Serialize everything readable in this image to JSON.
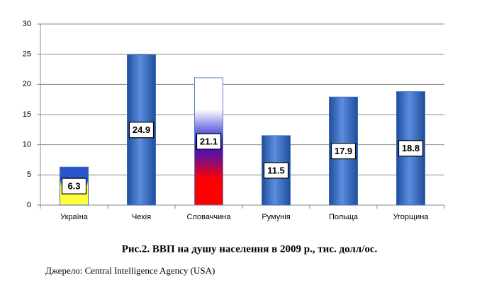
{
  "chart_data": {
    "type": "bar",
    "caption": "Рис.2. ВВП на душу населення в 2009 р., тис. долл/ос.",
    "source": "Джерело: Central Intelligence Agency (USA)",
    "categories": [
      "Україна",
      "Чехія",
      "Словаччина",
      "Румунія",
      "Польща",
      "Угорщина"
    ],
    "values": [
      6.3,
      24.9,
      21.1,
      11.5,
      17.9,
      18.8
    ],
    "color": "#3b6cbf",
    "ylim": [
      0,
      30
    ],
    "yticks": [
      0,
      5,
      10,
      15,
      20,
      25,
      30
    ],
    "grid": true
  }
}
